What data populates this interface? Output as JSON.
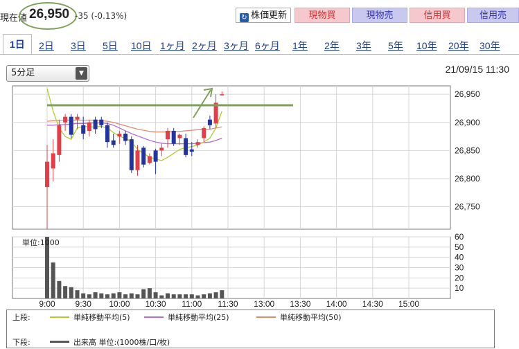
{
  "header": {
    "price_label": "現在値",
    "price": "26,950",
    "change": "-35 (-0.13%)",
    "buttons": {
      "update": "株価更新",
      "spot_buy": "現物買",
      "spot_sell": "現物売",
      "margin_buy": "信用買",
      "margin_sell": "信用売"
    }
  },
  "tabs": [
    "1日",
    "2日",
    "3日",
    "5日",
    "10日",
    "1ヶ月",
    "2ヶ月",
    "3ヶ月",
    "6ヶ月",
    "1年",
    "2年",
    "3年",
    "5年",
    "10年",
    "20年",
    "30年"
  ],
  "active_tab": "1日",
  "interval_select": "5分足",
  "timestamp": "21/09/15 11:30",
  "colors": {
    "up": "#e0404a",
    "down": "#23359a",
    "ma5": "#b5c930",
    "ma25": "#b86ad0",
    "ma50": "#e38a6e",
    "volume": "#555555",
    "annotation": "#7fa05a"
  },
  "chart_data": [
    {
      "type": "candlestick",
      "x_ticks": [
        "9:00",
        "9:30",
        "10:00",
        "10:30",
        "11:00",
        "11:30",
        "13:00",
        "13:30",
        "14:00",
        "14:30",
        "15:00"
      ],
      "y_ticks": [
        "26,950",
        "26,900",
        "26,850",
        "26,800",
        "26,750"
      ],
      "ylim": [
        26710,
        26965
      ],
      "candles": [
        {
          "t": "9:00",
          "o": 26785,
          "h": 26860,
          "l": 26710,
          "c": 26830
        },
        {
          "t": "9:05",
          "o": 26818,
          "h": 26870,
          "l": 26795,
          "c": 26845
        },
        {
          "t": "9:10",
          "o": 26842,
          "h": 26905,
          "l": 26830,
          "c": 26895
        },
        {
          "t": "9:15",
          "o": 26900,
          "h": 26915,
          "l": 26885,
          "c": 26910
        },
        {
          "t": "9:20",
          "o": 26910,
          "h": 26915,
          "l": 26872,
          "c": 26878
        },
        {
          "t": "9:25",
          "o": 26905,
          "h": 26915,
          "l": 26888,
          "c": 26910
        },
        {
          "t": "9:30",
          "o": 26895,
          "h": 26910,
          "l": 26870,
          "c": 26880
        },
        {
          "t": "9:35",
          "o": 26885,
          "h": 26905,
          "l": 26875,
          "c": 26900
        },
        {
          "t": "9:40",
          "o": 26905,
          "h": 26910,
          "l": 26880,
          "c": 26888
        },
        {
          "t": "9:45",
          "o": 26905,
          "h": 26910,
          "l": 26890,
          "c": 26895
        },
        {
          "t": "9:50",
          "o": 26895,
          "h": 26900,
          "l": 26855,
          "c": 26865
        },
        {
          "t": "9:55",
          "o": 26868,
          "h": 26880,
          "l": 26855,
          "c": 26860
        },
        {
          "t": "10:00",
          "o": 26875,
          "h": 26885,
          "l": 26862,
          "c": 26880
        },
        {
          "t": "10:05",
          "o": 26880,
          "h": 26885,
          "l": 26860,
          "c": 26867
        },
        {
          "t": "10:10",
          "o": 26870,
          "h": 26875,
          "l": 26810,
          "c": 26815
        },
        {
          "t": "10:15",
          "o": 26815,
          "h": 26860,
          "l": 26805,
          "c": 26850
        },
        {
          "t": "10:20",
          "o": 26855,
          "h": 26858,
          "l": 26820,
          "c": 26825
        },
        {
          "t": "10:25",
          "o": 26828,
          "h": 26845,
          "l": 26825,
          "c": 26840
        },
        {
          "t": "10:30",
          "o": 26850,
          "h": 26853,
          "l": 26808,
          "c": 26830
        },
        {
          "t": "10:35",
          "o": 26850,
          "h": 26862,
          "l": 26840,
          "c": 26855
        },
        {
          "t": "10:40",
          "o": 26870,
          "h": 26890,
          "l": 26855,
          "c": 26885
        },
        {
          "t": "10:45",
          "o": 26885,
          "h": 26890,
          "l": 26858,
          "c": 26862
        },
        {
          "t": "10:50",
          "o": 26872,
          "h": 26880,
          "l": 26860,
          "c": 26878
        },
        {
          "t": "10:55",
          "o": 26872,
          "h": 26880,
          "l": 26838,
          "c": 26842
        },
        {
          "t": "11:00",
          "o": 26852,
          "h": 26865,
          "l": 26840,
          "c": 26848
        },
        {
          "t": "11:05",
          "o": 26860,
          "h": 26870,
          "l": 26855,
          "c": 26865
        },
        {
          "t": "11:10",
          "o": 26872,
          "h": 26893,
          "l": 26865,
          "c": 26890
        },
        {
          "t": "11:15",
          "o": 26905,
          "h": 26912,
          "l": 26888,
          "c": 26895
        },
        {
          "t": "11:20",
          "o": 26898,
          "h": 26950,
          "l": 26890,
          "c": 26935
        },
        {
          "t": "11:25",
          "o": 26950,
          "h": 26955,
          "l": 26948,
          "c": 26950
        }
      ],
      "ma5": [
        26960,
        26920,
        26890,
        26875,
        26870,
        26890,
        26893,
        26892,
        26892,
        26893,
        26890,
        26882,
        26875,
        26872,
        26865,
        26852,
        26845,
        26838,
        26835,
        26832,
        26838,
        26845,
        26852,
        26855,
        26857,
        26860,
        26865,
        26872,
        26890,
        26920
      ],
      "ma25": [
        26895,
        26895,
        26896,
        26896,
        26897,
        26898,
        26898,
        26899,
        26899,
        26899,
        26898,
        26895,
        26890,
        26885,
        26880,
        26876,
        26872,
        26868,
        26865,
        26863,
        26862,
        26862,
        26862,
        26862,
        26862,
        26863,
        26864,
        26865,
        26868,
        26872
      ],
      "ma50": [
        26902,
        26903,
        26904,
        26904,
        26904,
        26904,
        26904,
        26904,
        26904,
        26903,
        26902,
        26900,
        26897,
        26894,
        26891,
        26888,
        26886,
        26884,
        26883,
        26883,
        26883,
        26884,
        26884,
        26885,
        26886,
        26887,
        26887,
        26888,
        26890,
        26892
      ]
    },
    {
      "type": "bar",
      "title": "単位:1000",
      "y_ticks": [
        "60",
        "50",
        "40",
        "30",
        "20",
        "10"
      ],
      "ylim": [
        0,
        60
      ],
      "values": [
        60,
        35,
        17,
        12,
        11,
        8,
        5,
        4,
        6,
        5,
        4,
        5,
        6,
        4,
        5,
        4,
        9,
        10,
        6,
        3,
        5,
        4,
        4,
        4,
        4,
        3,
        4,
        5,
        6,
        8
      ]
    }
  ],
  "legend": {
    "upper_label": "上段:",
    "lower_label": "下段:",
    "ma5": "単純移動平均(5)",
    "ma25": "単純移動平均(25)",
    "ma50": "単純移動平均(50)",
    "volume": "出来高 単位:(1000株/口/枚)"
  }
}
